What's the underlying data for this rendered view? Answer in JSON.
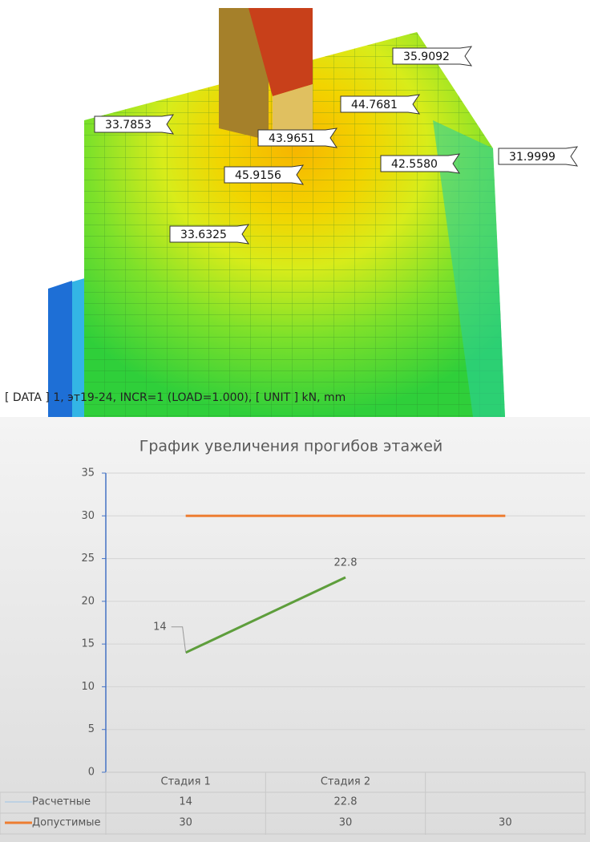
{
  "model_view": {
    "labels": [
      "35.9092",
      "44.7681",
      "33.7853",
      "43.9651",
      "42.5580",
      "31.9999",
      "45.9156",
      "33.6325"
    ],
    "caption": "[ DATA ] 1, эт19-24, INCR=1 (LOAD=1.000), [ UNIT ] kN, mm"
  },
  "chart_data": {
    "type": "line",
    "title": "График увеличения прогибов этажей",
    "categories": [
      "Стадия 1",
      "Стадия 2",
      null
    ],
    "series": [
      {
        "name": "Расчетные",
        "color": "#5e9e3c",
        "values": [
          14,
          22.8,
          null
        ],
        "data_labels": true
      },
      {
        "name": "Допустимые",
        "color": "#ed7d31",
        "values": [
          30,
          30,
          30
        ],
        "data_labels": false
      }
    ],
    "ylim": [
      0,
      35
    ],
    "yticks": [
      0,
      5,
      10,
      15,
      20,
      25,
      30,
      35
    ],
    "grid": true,
    "data_table": true
  }
}
